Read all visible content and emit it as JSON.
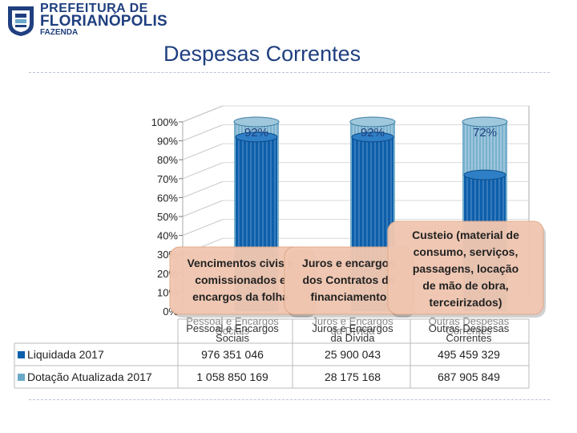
{
  "header": {
    "logo_line1": "PREFEITURA DE",
    "logo_line2": "FLORIANÓPOLIS",
    "logo_line3": "FAZENDA"
  },
  "colors": {
    "brand": "#1f3f7f",
    "liquidada": "#0d5fab",
    "dotacao": "#6ba9c9"
  },
  "chart_data": {
    "type": "bar",
    "title": "Despesas Correntes",
    "y_ticks": [
      "100%",
      "90%",
      "80%",
      "70%",
      "60%",
      "50%",
      "40%",
      "30%",
      "20%",
      "10%",
      "0%"
    ],
    "ylim": [
      0,
      100
    ],
    "categories": [
      "Pessoal e Encargos Sociais",
      "Juros e Encargos da Dívida",
      "Outras Despesas Correntes"
    ],
    "category_label_lines": [
      [
        "Pessoal e Encargos",
        "Sociais"
      ],
      [
        "Juros e Encargos",
        "da Dívida"
      ],
      [
        "Outras Despesas",
        "Correntes"
      ]
    ],
    "execution_labels": [
      "92%",
      "92%",
      "72%"
    ],
    "series": [
      {
        "name": "Liquidada 2017",
        "values": [
          92,
          92,
          72
        ],
        "table_values": [
          "976 351 046",
          "25 900 043",
          "495 459 329"
        ]
      },
      {
        "name": "Dotação Atualizada 2017",
        "values": [
          100,
          100,
          100
        ],
        "table_values": [
          "1 058 850 169",
          "28 175 168",
          "687 905 849"
        ]
      }
    ],
    "tooltips": [
      [
        "Vencimentos civis e",
        "comissionados e",
        "encargos da folha"
      ],
      [
        "Juros e encargos",
        "dos Contratos de",
        "financiamento"
      ],
      [
        "Custeio (material de",
        "consumo, serviços,",
        "passagens, locação",
        "de mão de obra,",
        "terceirizados)"
      ]
    ]
  }
}
